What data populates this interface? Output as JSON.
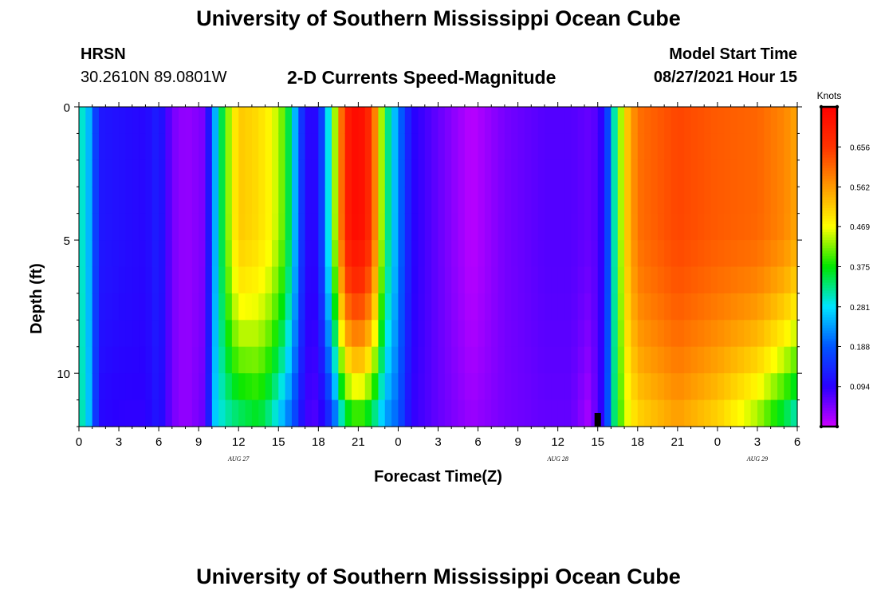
{
  "header": {
    "title": "University of Southern Mississippi Ocean Cube",
    "station_name": "HRSN",
    "station_coords": "30.2610N  89.0801W",
    "subtitle": "2-D Currents Speed-Magnitude",
    "model_start_label": "Model Start Time",
    "model_start_value": "08/27/2021 Hour 15"
  },
  "footer": {
    "title": "University of Southern Mississippi Ocean Cube"
  },
  "chart_data": {
    "type": "heatmap",
    "title": "2-D Currents Speed-Magnitude",
    "xlabel": "Forecast Time(Z)",
    "ylabel": "Depth (ft)",
    "x_tick_labels": [
      "0",
      "3",
      "6",
      "9",
      "12",
      "15",
      "18",
      "21",
      "0",
      "3",
      "6",
      "9",
      "12",
      "15",
      "18",
      "21",
      "0",
      "3",
      "6"
    ],
    "x_hours": [
      0,
      54
    ],
    "date_labels": [
      {
        "text": "AUG  27",
        "hour": 12
      },
      {
        "text": "AUG  28",
        "hour": 36
      },
      {
        "text": "AUG  29",
        "hour": 51
      }
    ],
    "y_tick_labels": [
      "0",
      "5",
      "10"
    ],
    "y_ticks": [
      0,
      5,
      10
    ],
    "ylim": [
      0,
      12
    ],
    "y_reversed": true,
    "current_time_hour": 39,
    "colorbar": {
      "title": "Knots",
      "tick_labels": [
        "0.656",
        "0.562",
        "0.469",
        "0.375",
        "0.281",
        "0.188",
        "0.094"
      ],
      "ticks": [
        0.656,
        0.562,
        0.469,
        0.375,
        0.281,
        0.188,
        0.094
      ],
      "range": [
        0.0,
        0.75
      ],
      "colors": [
        "#cc00ff",
        "#2a00ff",
        "#0055ff",
        "#00e5ff",
        "#00e600",
        "#ffff00",
        "#ff9900",
        "#ff3300",
        "#ff0000"
      ]
    },
    "time_keyframes": [
      [
        0,
        0.32,
        0.33
      ],
      [
        0.7,
        0.26,
        0.27
      ],
      [
        1.5,
        0.12,
        0.1
      ],
      [
        3,
        0.11,
        0.09
      ],
      [
        5,
        0.1,
        0.09
      ],
      [
        6,
        0.13,
        0.12
      ],
      [
        7,
        0.05,
        0.05
      ],
      [
        8,
        0.03,
        0.03
      ],
      [
        9.5,
        0.05,
        0.06
      ],
      [
        10.3,
        0.26,
        0.28
      ],
      [
        11,
        0.4,
        0.3
      ],
      [
        12,
        0.52,
        0.32
      ],
      [
        13.5,
        0.5,
        0.35
      ],
      [
        14.5,
        0.47,
        0.3
      ],
      [
        15.5,
        0.4,
        0.22
      ],
      [
        16.3,
        0.24,
        0.16
      ],
      [
        17,
        0.1,
        0.08
      ],
      [
        18,
        0.1,
        0.07
      ],
      [
        19,
        0.35,
        0.14
      ],
      [
        20,
        0.69,
        0.32
      ],
      [
        21,
        0.74,
        0.37
      ],
      [
        22,
        0.66,
        0.32
      ],
      [
        23,
        0.36,
        0.23
      ],
      [
        24,
        0.22,
        0.19
      ],
      [
        25,
        0.1,
        0.09
      ],
      [
        27,
        0.06,
        0.06
      ],
      [
        29.5,
        0.01,
        0.03
      ],
      [
        32,
        0.05,
        0.05
      ],
      [
        35,
        0.07,
        0.06
      ],
      [
        37,
        0.07,
        0.06
      ],
      [
        38.3,
        0.06,
        0.02
      ],
      [
        39,
        0.07,
        0.07
      ],
      [
        39.6,
        0.12,
        0.12
      ],
      [
        40,
        0.25,
        0.3
      ],
      [
        41,
        0.5,
        0.44
      ],
      [
        42,
        0.6,
        0.5
      ],
      [
        45,
        0.64,
        0.55
      ],
      [
        48,
        0.62,
        0.5
      ],
      [
        51,
        0.61,
        0.42
      ],
      [
        53,
        0.58,
        0.33
      ],
      [
        54,
        0.55,
        0.28
      ]
    ]
  }
}
